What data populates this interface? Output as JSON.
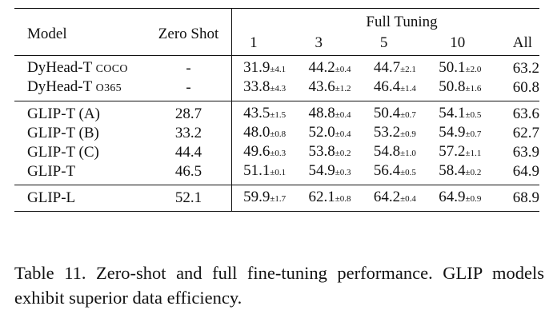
{
  "table": {
    "headers": {
      "model": "Model",
      "zero_shot": "Zero Shot",
      "full_tuning": "Full Tuning",
      "shots": [
        "1",
        "3",
        "5",
        "10",
        "All"
      ]
    },
    "groups": [
      {
        "rows": [
          {
            "model": "DyHead-T",
            "model_suffix": "COCO",
            "zero_shot": "-",
            "cells": [
              {
                "v": "31.9",
                "pm": "±4.1"
              },
              {
                "v": "44.2",
                "pm": "±0.4"
              },
              {
                "v": "44.7",
                "pm": "±2.1"
              },
              {
                "v": "50.1",
                "pm": "±2.0"
              },
              {
                "v": "63.2",
                "pm": ""
              }
            ]
          },
          {
            "model": "DyHead-T",
            "model_suffix": "O365",
            "zero_shot": "-",
            "cells": [
              {
                "v": "33.8",
                "pm": "±4.3"
              },
              {
                "v": "43.6",
                "pm": "±1.2"
              },
              {
                "v": "46.4",
                "pm": "±1.4"
              },
              {
                "v": "50.8",
                "pm": "±1.6"
              },
              {
                "v": "60.8",
                "pm": ""
              }
            ]
          }
        ]
      },
      {
        "rows": [
          {
            "model": "GLIP-T (A)",
            "model_suffix": "",
            "zero_shot": "28.7",
            "cells": [
              {
                "v": "43.5",
                "pm": "±1.5"
              },
              {
                "v": "48.8",
                "pm": "±0.4"
              },
              {
                "v": "50.4",
                "pm": "±0.7"
              },
              {
                "v": "54.1",
                "pm": "±0.5"
              },
              {
                "v": "63.6",
                "pm": ""
              }
            ]
          },
          {
            "model": "GLIP-T (B)",
            "model_suffix": "",
            "zero_shot": "33.2",
            "cells": [
              {
                "v": "48.0",
                "pm": "±0.8"
              },
              {
                "v": "52.0",
                "pm": "±0.4"
              },
              {
                "v": "53.2",
                "pm": "±0.9"
              },
              {
                "v": "54.9",
                "pm": "±0.7"
              },
              {
                "v": "62.7",
                "pm": ""
              }
            ]
          },
          {
            "model": "GLIP-T (C)",
            "model_suffix": "",
            "zero_shot": "44.4",
            "cells": [
              {
                "v": "49.6",
                "pm": "±0.3"
              },
              {
                "v": "53.8",
                "pm": "±0.2"
              },
              {
                "v": "54.8",
                "pm": "±1.0"
              },
              {
                "v": "57.2",
                "pm": "±1.1"
              },
              {
                "v": "63.9",
                "pm": ""
              }
            ]
          },
          {
            "model": "GLIP-T",
            "model_suffix": "",
            "zero_shot": "46.5",
            "cells": [
              {
                "v": "51.1",
                "pm": "±0.1"
              },
              {
                "v": "54.9",
                "pm": "±0.3"
              },
              {
                "v": "56.4",
                "pm": "±0.5"
              },
              {
                "v": "58.4",
                "pm": "±0.2"
              },
              {
                "v": "64.9",
                "pm": ""
              }
            ]
          }
        ]
      },
      {
        "rows": [
          {
            "model": "GLIP-L",
            "model_suffix": "",
            "zero_shot": "52.1",
            "cells": [
              {
                "v": "59.9",
                "pm": "±1.7"
              },
              {
                "v": "62.1",
                "pm": "±0.8"
              },
              {
                "v": "64.2",
                "pm": "±0.4"
              },
              {
                "v": "64.9",
                "pm": "±0.9"
              },
              {
                "v": "68.9",
                "pm": ""
              }
            ]
          }
        ]
      }
    ]
  },
  "caption": "Table 11. Zero-shot and full fine-tuning performance. GLIP models exhibit superior data efficiency."
}
